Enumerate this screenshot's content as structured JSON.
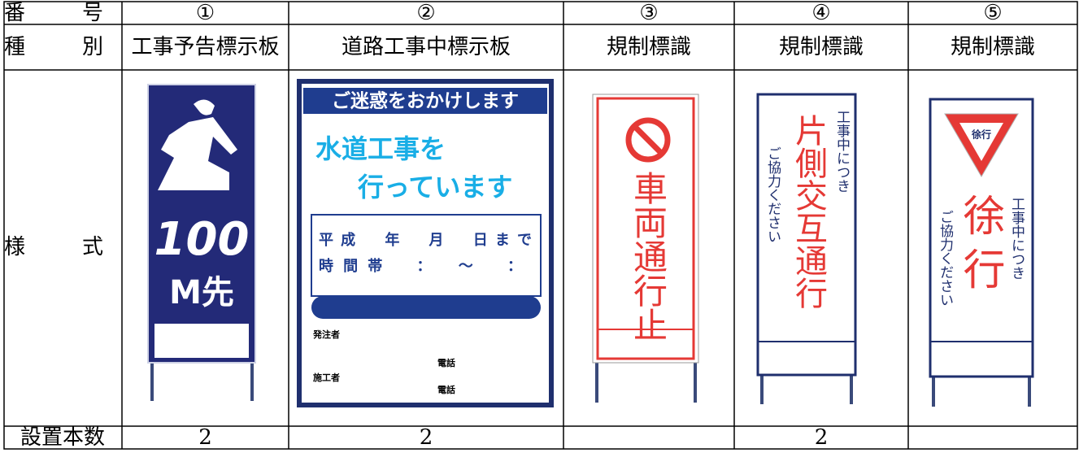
{
  "table": {
    "header": {
      "label": "番　号",
      "columns": [
        "①",
        "②",
        "③",
        "④",
        "⑤"
      ]
    },
    "types": {
      "label": "種　別",
      "values": [
        "工事予告標示板",
        "道路工事中標示板",
        "規制標識",
        "規制標識",
        "規制標識"
      ]
    },
    "styles": {
      "label": "様　式"
    },
    "quantities": {
      "label": "設置本数",
      "values": [
        2,
        2,
        null,
        2,
        null
      ]
    }
  },
  "signs": [
    {
      "distance": "100",
      "unit": "M先"
    },
    {
      "header": "ご迷惑をおかけします",
      "lines": [
        "水道工事を",
        "行っています"
      ],
      "period": "平成　年　月　日まで",
      "hours": "時間帯　：　〜　：",
      "client": "発注者",
      "phone1": "電話",
      "contractor": "施工者",
      "phone2": "電話"
    },
    {
      "message": "車両通行止"
    },
    {
      "message": "片側交互通行",
      "note1": "工事中につき",
      "note2": "ご協力ください"
    },
    {
      "symbol": "徐行",
      "message": "徐行",
      "note1": "工事中につき",
      "note2": "ご協力ください"
    }
  ]
}
